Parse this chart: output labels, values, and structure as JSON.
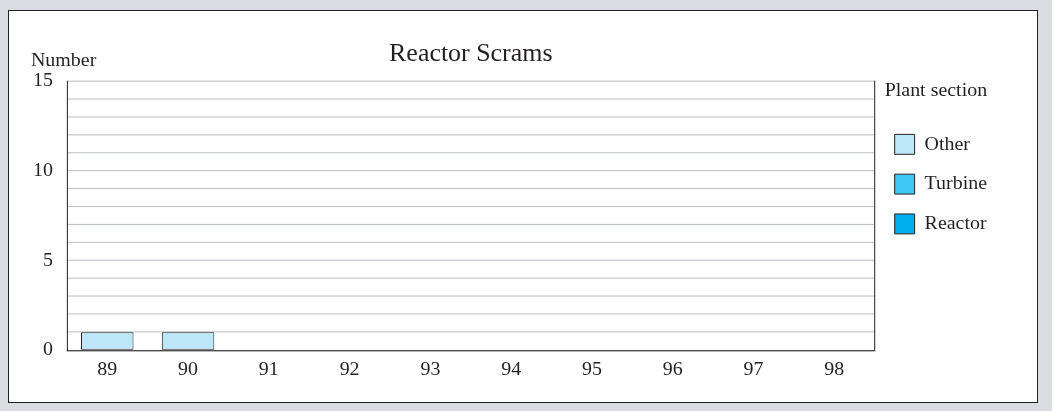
{
  "chart_data": {
    "type": "bar",
    "title": "Reactor Scrams",
    "ylabel": "Number",
    "legend_title": "Plant section",
    "stacked": true,
    "categories": [
      "89",
      "90",
      "91",
      "92",
      "93",
      "94",
      "95",
      "96",
      "97",
      "98"
    ],
    "series": [
      {
        "name": "Reactor",
        "color": "#00aeef",
        "values": [
          0,
          0,
          0,
          0,
          0,
          0,
          null,
          null,
          null,
          null
        ]
      },
      {
        "name": "Turbine",
        "color": "#3fc8f4",
        "values": [
          0,
          0,
          0,
          0,
          0,
          0,
          null,
          null,
          null,
          null
        ]
      },
      {
        "name": "Other",
        "color": "#bde6f8",
        "values": [
          1,
          1,
          0,
          0,
          0,
          0,
          null,
          null,
          null,
          null
        ]
      }
    ],
    "ylim": [
      0,
      15
    ],
    "yticks": [
      0,
      {
        "value": 1,
        "label": null
      },
      {
        "value": 2,
        "label": null
      },
      {
        "value": 3,
        "label": null
      },
      {
        "value": 4,
        "label": null
      },
      5,
      {
        "value": 6,
        "label": null
      },
      {
        "value": 7,
        "label": null
      },
      {
        "value": 8,
        "label": null
      },
      {
        "value": 9,
        "label": null
      },
      10,
      {
        "value": 11,
        "label": null
      },
      {
        "value": 12,
        "label": null
      },
      {
        "value": 13,
        "label": null
      },
      {
        "value": 14,
        "label": null
      },
      15
    ],
    "grid": "y",
    "legend": "top right"
  }
}
